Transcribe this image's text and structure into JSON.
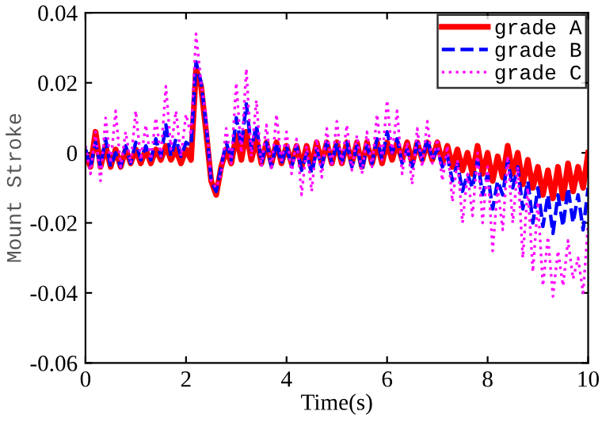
{
  "chart_data": {
    "type": "line",
    "xlabel": "Time(s)",
    "ylabel": "Mount Stroke",
    "x": [
      0,
      0.1,
      0.2,
      0.3,
      0.4,
      0.5,
      0.6,
      0.7,
      0.8,
      0.9,
      1,
      1.1,
      1.2,
      1.3,
      1.4,
      1.5,
      1.6,
      1.7,
      1.8,
      1.9,
      2,
      2.1,
      2.2,
      2.3,
      2.4,
      2.5,
      2.6,
      2.7,
      2.8,
      2.9,
      3,
      3.1,
      3.2,
      3.3,
      3.4,
      3.5,
      3.6,
      3.7,
      3.8,
      3.9,
      4,
      4.1,
      4.2,
      4.3,
      4.4,
      4.5,
      4.6,
      4.7,
      4.8,
      4.9,
      5,
      5.1,
      5.2,
      5.3,
      5.4,
      5.5,
      5.6,
      5.7,
      5.8,
      5.9,
      6,
      6.1,
      6.2,
      6.3,
      6.4,
      6.5,
      6.6,
      6.7,
      6.8,
      6.9,
      7,
      7.1,
      7.2,
      7.3,
      7.4,
      7.5,
      7.6,
      7.7,
      7.8,
      7.9,
      8,
      8.1,
      8.2,
      8.3,
      8.4,
      8.5,
      8.6,
      8.7,
      8.8,
      8.9,
      9,
      9.1,
      9.2,
      9.3,
      9.4,
      9.5,
      9.6,
      9.7,
      9.8,
      9.9,
      10
    ],
    "series": [
      {
        "name": "grade A",
        "color": "#ff0000",
        "line_style": "solid",
        "values": [
          0.0,
          -0.004,
          0.006,
          -0.004,
          0.002,
          -0.004,
          0.001,
          -0.004,
          0.001,
          -0.003,
          0.001,
          -0.003,
          0.001,
          -0.003,
          0.001,
          -0.002,
          0.002,
          -0.002,
          0.001,
          -0.003,
          0.001,
          -0.002,
          0.024,
          0.019,
          0.006,
          -0.008,
          -0.012,
          -0.004,
          0.001,
          -0.003,
          0.005,
          -0.002,
          0.006,
          -0.002,
          0.004,
          -0.003,
          0.003,
          -0.003,
          0.003,
          -0.003,
          0.002,
          -0.003,
          0.002,
          -0.004,
          0.002,
          -0.004,
          0.003,
          -0.003,
          0.003,
          -0.003,
          0.003,
          -0.003,
          0.003,
          -0.003,
          0.003,
          -0.004,
          0.003,
          -0.003,
          0.003,
          -0.003,
          0.003,
          -0.002,
          0.003,
          -0.002,
          0.003,
          -0.003,
          0.003,
          -0.002,
          0.003,
          -0.002,
          0.003,
          -0.003,
          0.002,
          -0.004,
          0.001,
          -0.005,
          0.0,
          -0.006,
          0.002,
          -0.006,
          0.0,
          -0.008,
          -0.001,
          -0.007,
          0.002,
          -0.006,
          0.0,
          -0.009,
          -0.002,
          -0.01,
          -0.004,
          -0.012,
          -0.005,
          -0.013,
          -0.004,
          -0.013,
          -0.003,
          -0.011,
          -0.004,
          -0.01,
          0.0
        ]
      },
      {
        "name": "grade B",
        "color": "#0000ff",
        "line_style": "dashed",
        "values": [
          0.001,
          -0.004,
          0.003,
          -0.004,
          0.004,
          -0.004,
          0.0,
          -0.004,
          0.002,
          -0.003,
          0.003,
          -0.002,
          0.002,
          -0.002,
          0.004,
          -0.001,
          0.008,
          -0.001,
          0.004,
          -0.001,
          0.003,
          0.002,
          0.026,
          0.02,
          0.008,
          -0.008,
          -0.011,
          -0.004,
          0.003,
          -0.002,
          0.01,
          0.002,
          0.014,
          0.001,
          0.008,
          -0.003,
          0.003,
          -0.004,
          0.003,
          -0.003,
          0.002,
          -0.004,
          0.002,
          -0.005,
          0.0,
          -0.006,
          0.001,
          -0.004,
          0.003,
          -0.003,
          0.003,
          -0.003,
          0.003,
          -0.004,
          0.002,
          -0.005,
          0.002,
          -0.003,
          0.004,
          -0.002,
          0.006,
          0.0,
          0.004,
          -0.003,
          0.001,
          -0.004,
          0.003,
          -0.002,
          0.004,
          -0.002,
          0.001,
          -0.004,
          -0.001,
          -0.008,
          -0.003,
          -0.011,
          -0.006,
          -0.01,
          -0.002,
          -0.012,
          -0.006,
          -0.016,
          -0.008,
          -0.012,
          -0.002,
          -0.01,
          -0.004,
          -0.016,
          -0.008,
          -0.02,
          -0.01,
          -0.021,
          -0.012,
          -0.023,
          -0.012,
          -0.021,
          -0.01,
          -0.02,
          -0.012,
          -0.022,
          -0.01
        ]
      },
      {
        "name": "grade C",
        "color": "#ff00ff",
        "line_style": "dotted",
        "values": [
          0.002,
          -0.006,
          0.006,
          -0.008,
          0.01,
          -0.003,
          0.012,
          -0.004,
          0.006,
          -0.003,
          0.012,
          -0.002,
          0.008,
          -0.002,
          0.01,
          -0.001,
          0.019,
          0.001,
          0.012,
          -0.001,
          0.011,
          0.005,
          0.034,
          0.02,
          0.01,
          -0.008,
          -0.01,
          -0.006,
          0.007,
          -0.003,
          0.02,
          0.0,
          0.024,
          -0.001,
          0.015,
          -0.004,
          0.008,
          -0.005,
          0.011,
          -0.003,
          0.006,
          -0.006,
          0.004,
          -0.012,
          0.002,
          -0.011,
          0.004,
          -0.007,
          0.007,
          -0.004,
          0.009,
          -0.003,
          0.008,
          -0.005,
          0.005,
          -0.006,
          0.006,
          -0.004,
          0.011,
          -0.002,
          0.015,
          0.0,
          0.012,
          -0.006,
          0.003,
          -0.009,
          0.007,
          -0.004,
          0.009,
          -0.003,
          0.004,
          -0.008,
          0.002,
          -0.014,
          -0.002,
          -0.02,
          -0.006,
          -0.018,
          0.0,
          -0.02,
          -0.004,
          -0.028,
          -0.01,
          -0.022,
          -0.001,
          -0.02,
          -0.004,
          -0.03,
          -0.01,
          -0.034,
          -0.014,
          -0.038,
          -0.024,
          -0.041,
          -0.028,
          -0.038,
          -0.025,
          -0.036,
          -0.03,
          -0.04,
          -0.02
        ]
      }
    ],
    "xlim": [
      0,
      10
    ],
    "xticks": [
      0,
      2,
      4,
      6,
      8,
      10
    ],
    "ylim": [
      -0.06,
      0.04
    ],
    "yticks": [
      -0.06,
      -0.04,
      -0.02,
      0,
      0.02,
      0.04
    ],
    "grid": false,
    "legend": "top right",
    "marker": "none"
  }
}
